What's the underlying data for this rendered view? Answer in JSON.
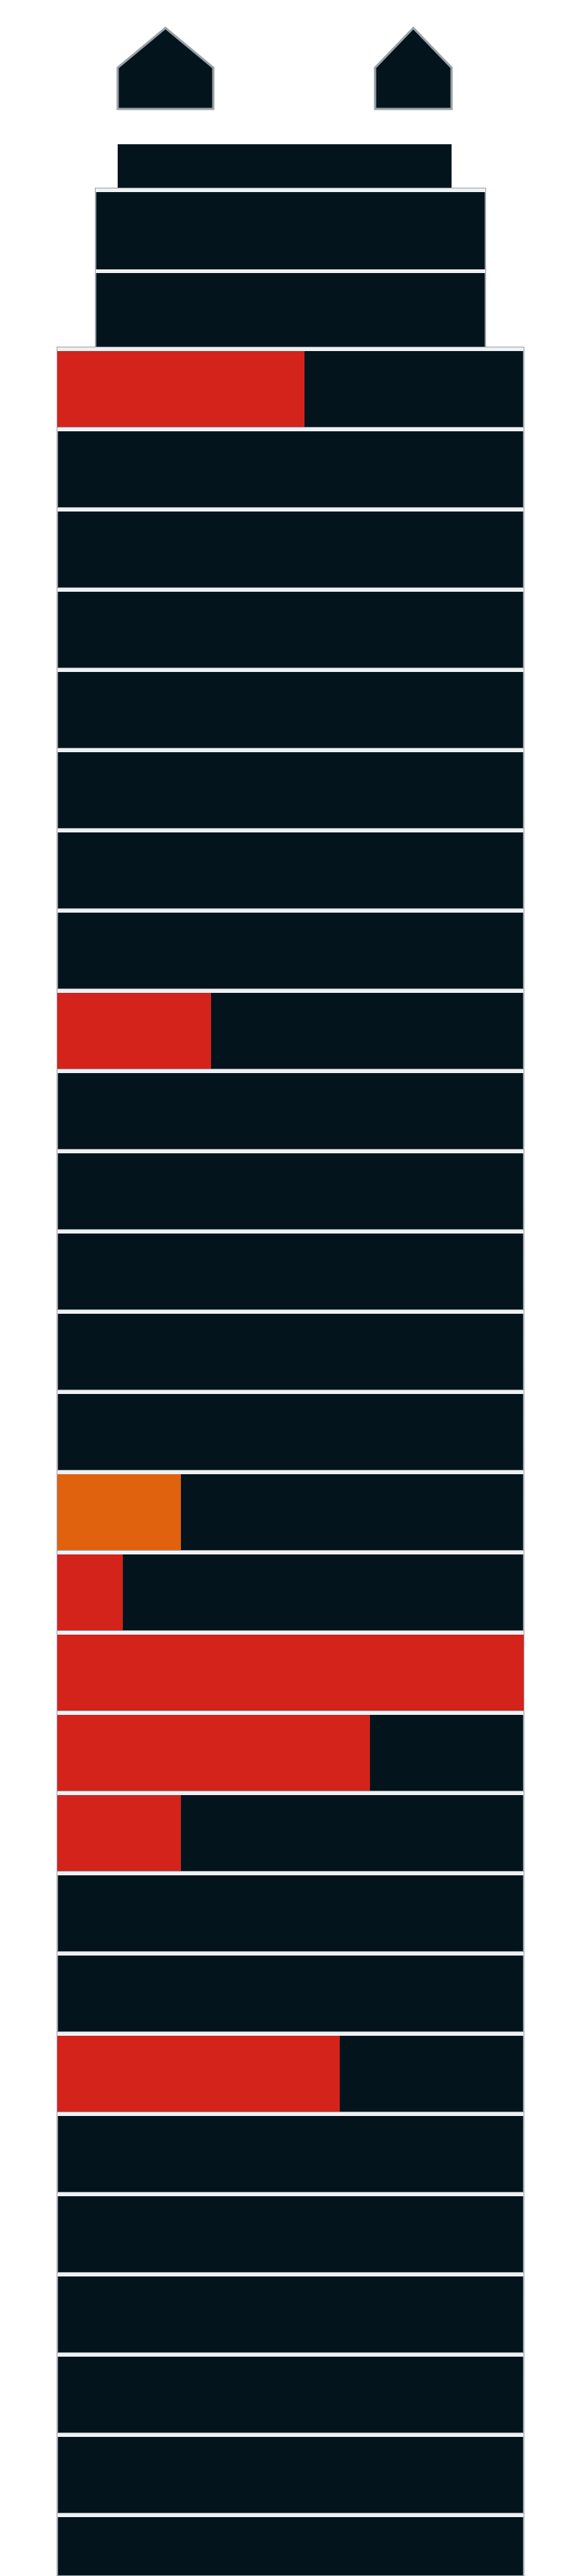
{
  "colors": {
    "background": "#ffffff",
    "body": "#04141c",
    "separator": "#eef1f4",
    "edge": "#9aa2a8",
    "red": "#d3231b",
    "orange": "#e0620e"
  },
  "floors": [
    {
      "level": 0.53,
      "color": "red"
    },
    {
      "level": 0,
      "color": "red"
    },
    {
      "level": 0,
      "color": "red"
    },
    {
      "level": 0,
      "color": "red"
    },
    {
      "level": 0,
      "color": "red"
    },
    {
      "level": 0,
      "color": "red"
    },
    {
      "level": 0,
      "color": "red"
    },
    {
      "level": 0,
      "color": "red"
    },
    {
      "level": 0.33,
      "color": "red"
    },
    {
      "level": 0,
      "color": "red"
    },
    {
      "level": 0,
      "color": "red"
    },
    {
      "level": 0,
      "color": "red"
    },
    {
      "level": 0,
      "color": "red"
    },
    {
      "level": 0,
      "color": "red"
    },
    {
      "level": 0.265,
      "color": "orange"
    },
    {
      "level": 0.14,
      "color": "red"
    },
    {
      "level": 1.0,
      "color": "red"
    },
    {
      "level": 0.67,
      "color": "red"
    },
    {
      "level": 0.265,
      "color": "red"
    },
    {
      "level": 0,
      "color": "red"
    },
    {
      "level": 0,
      "color": "red"
    },
    {
      "level": 0.605,
      "color": "red"
    },
    {
      "level": 0,
      "color": "red"
    },
    {
      "level": 0,
      "color": "red"
    },
    {
      "level": 0,
      "color": "red"
    },
    {
      "level": 0,
      "color": "red"
    },
    {
      "level": 0,
      "color": "red"
    },
    {
      "level": 0,
      "color": "red"
    }
  ]
}
